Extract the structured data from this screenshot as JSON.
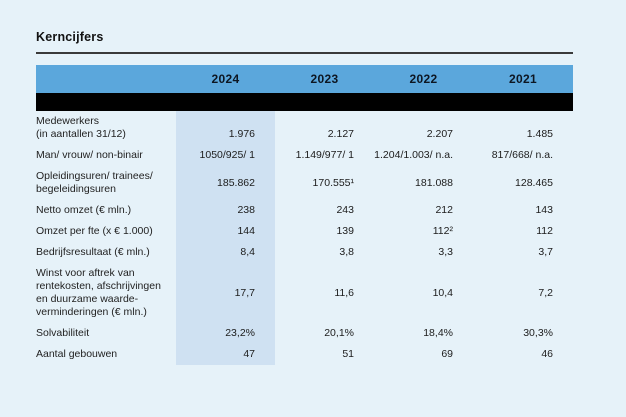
{
  "page": {
    "title": "Kerncijfers",
    "background_color": "#e6f2f9"
  },
  "table": {
    "header": {
      "columns": [
        "2024",
        "2023",
        "2022",
        "2021"
      ],
      "background_color": "#5ba7dc",
      "highlighted_column": "2024",
      "highlight_color": "#cfe1f2"
    },
    "rows": [
      {
        "label": "Medewerkers\n(in aantallen 31/12)",
        "values": [
          "1.976",
          "2.127",
          "2.207",
          "1.485"
        ]
      },
      {
        "label": "Man/ vrouw/ non-binair",
        "values": [
          "1050/925/ 1",
          "1.149/977/ 1",
          "1.204/1.003/ n.a.",
          "817/668/ n.a."
        ]
      },
      {
        "label": "Opleidingsuren/ trainees/\nbegeleidingsuren",
        "values": [
          "185.862",
          "170.555¹",
          "181.088",
          "128.465"
        ]
      },
      {
        "label": "Netto omzet (€ mln.)",
        "values": [
          "238",
          "243",
          "212",
          "143"
        ]
      },
      {
        "label": "Omzet per fte (x € 1.000)",
        "values": [
          "144",
          "139",
          "112²",
          "112"
        ]
      },
      {
        "label": "Bedrijfsresultaat (€ mln.)",
        "values": [
          "8,4",
          "3,8",
          "3,3",
          "3,7"
        ]
      },
      {
        "label": "Winst voor aftrek van\nrentekosten, afschrijvingen\nen duurzame waarde-\nverminderingen (€ mln.)",
        "values": [
          "17,7",
          "11,6",
          "10,4",
          "7,2"
        ]
      },
      {
        "label": "Solvabiliteit",
        "values": [
          "23,2%",
          "20,1%",
          "18,4%",
          "30,3%"
        ]
      },
      {
        "label": "Aantal gebouwen",
        "values": [
          "47",
          "51",
          "69",
          "46"
        ]
      }
    ]
  }
}
